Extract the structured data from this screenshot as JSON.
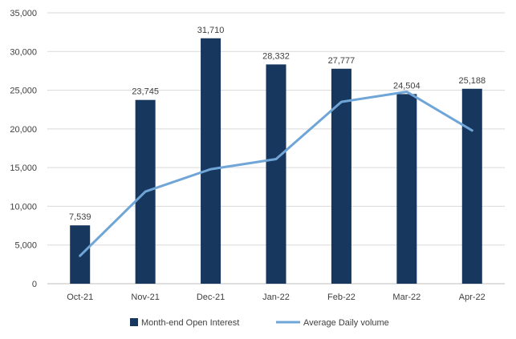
{
  "chart_data": {
    "type": "bar",
    "categories": [
      "Oct-21",
      "Nov-21",
      "Dec-21",
      "Jan-22",
      "Feb-22",
      "Mar-22",
      "Apr-22"
    ],
    "series": [
      {
        "name": "Month-end Open Interest",
        "type": "bar",
        "values": [
          7539,
          23745,
          31710,
          28332,
          27777,
          24504,
          25188
        ],
        "data_labels": [
          "7,539",
          "23,745",
          "31,710",
          "28,332",
          "27,777",
          "24,504",
          "25,188"
        ]
      },
      {
        "name": "Average Daily volume",
        "type": "line",
        "values": [
          3600,
          11900,
          14800,
          16100,
          23500,
          24800,
          19800
        ]
      }
    ],
    "ylim": [
      0,
      35000
    ],
    "yticks": [
      0,
      5000,
      10000,
      15000,
      20000,
      25000,
      30000,
      35000
    ],
    "ytick_labels": [
      "0",
      "5,000",
      "10,000",
      "15,000",
      "20,000",
      "25,000",
      "30,000",
      "35,000"
    ],
    "grid": true,
    "legend_position": "bottom",
    "colors": {
      "bar": "#17375e",
      "line": "#6fa5d7",
      "grid": "#d9d9d9",
      "text": "#404040"
    }
  }
}
